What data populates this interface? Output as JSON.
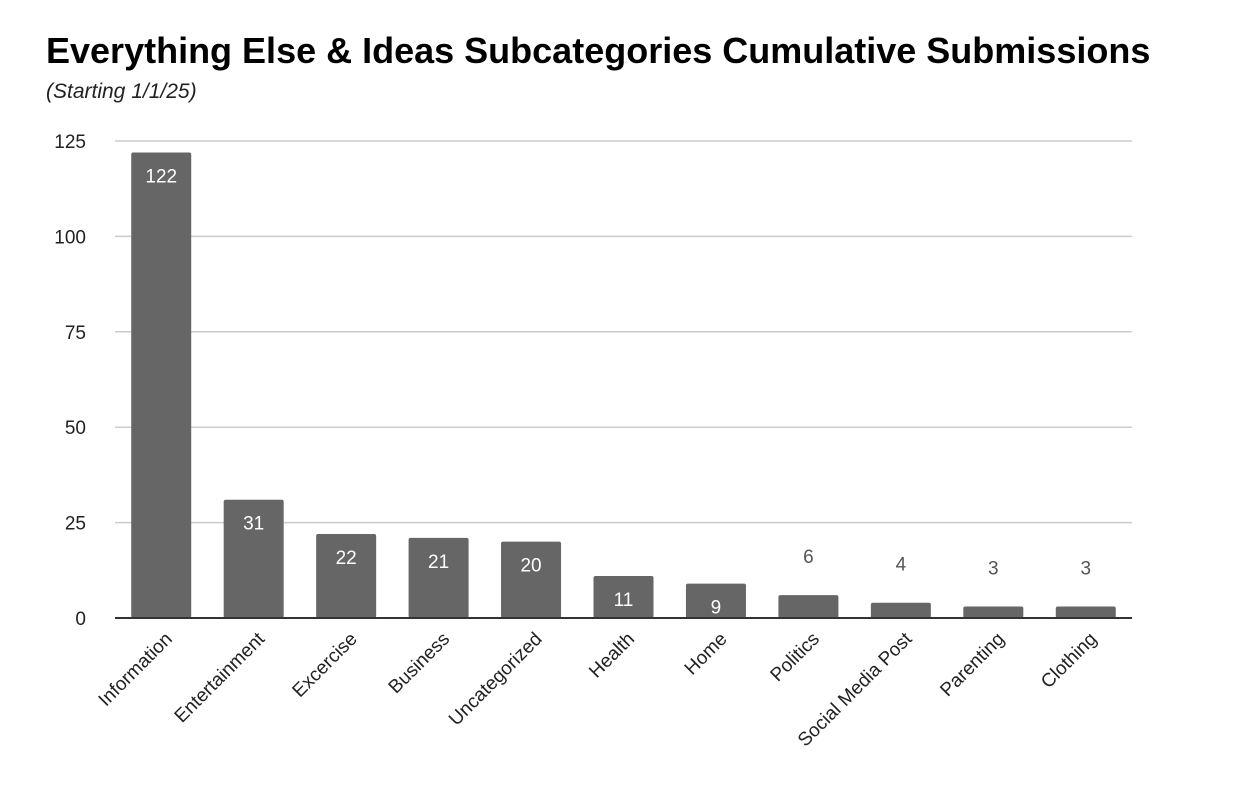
{
  "chart_data": {
    "type": "bar",
    "title": "Everything Else & Ideas Subcategories Cumulative Submissions",
    "subtitle": "(Starting 1/1/25)",
    "categories": [
      "Information",
      "Entertainment",
      "Excercise",
      "Business",
      "Uncategorized",
      "Health",
      "Home",
      "Politics",
      "Social Media Post",
      "Parenting",
      "Clothing"
    ],
    "values": [
      122,
      31,
      22,
      21,
      20,
      11,
      9,
      6,
      4,
      3,
      3
    ],
    "ylim": [
      0,
      125
    ],
    "yticks": [
      0,
      25,
      50,
      75,
      100,
      125
    ],
    "grid": true,
    "legend": "none",
    "bar_color": "#666666",
    "gridline_color": "#cccccc",
    "axis_color": "#333333",
    "label_inside_color": "#ffffff",
    "label_outside_color": "#555555"
  }
}
